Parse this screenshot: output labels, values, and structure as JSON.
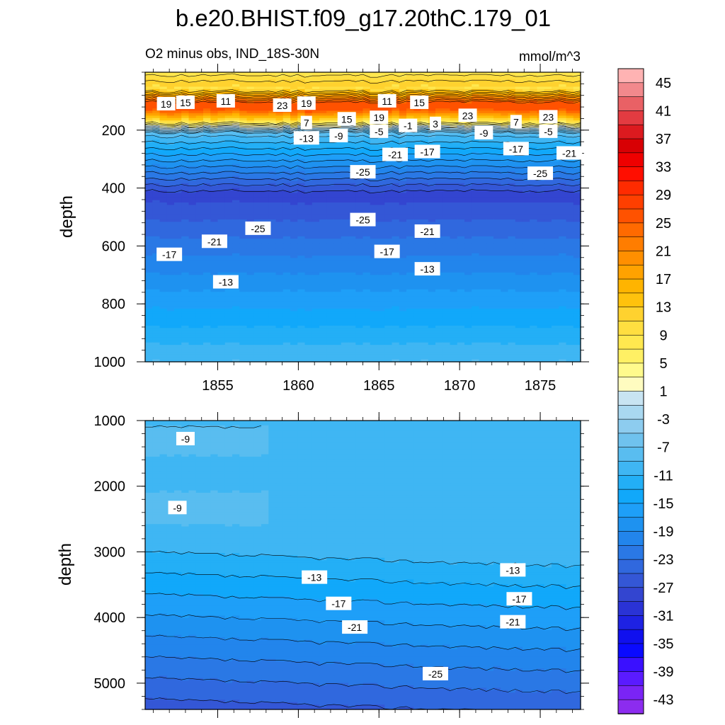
{
  "chart_data": {
    "type": "contour",
    "title": "b.e20.BHIST.f09_g17.20thC.179_01",
    "subtitle_left": "O2 minus obs, IND_18S-30N",
    "units": "mmol/m^3",
    "xlabel": "",
    "ylabel": "depth",
    "x_range": [
      1850.5,
      1877.5
    ],
    "x_ticks": [
      1855,
      1860,
      1865,
      1870,
      1875
    ],
    "x_tick_labels": [
      "1855",
      "1860",
      "1865",
      "1870",
      "1875"
    ],
    "panels": [
      {
        "name": "upper",
        "ylim": [
          0,
          1000
        ],
        "y_ticks": [
          200,
          400,
          600,
          800,
          1000
        ],
        "y_tick_labels": [
          "200",
          "400",
          "600",
          "800",
          "1000"
        ],
        "contour_labels": [
          {
            "text": "19",
            "x": 1851.8,
            "y": 110
          },
          {
            "text": "15",
            "x": 1853.0,
            "y": 105
          },
          {
            "text": "11",
            "x": 1855.5,
            "y": 100
          },
          {
            "text": "23",
            "x": 1859.0,
            "y": 115
          },
          {
            "text": "19",
            "x": 1860.5,
            "y": 108
          },
          {
            "text": "11",
            "x": 1865.5,
            "y": 100
          },
          {
            "text": "15",
            "x": 1867.5,
            "y": 105
          },
          {
            "text": "23",
            "x": 1870.5,
            "y": 150
          },
          {
            "text": "23",
            "x": 1875.5,
            "y": 155
          },
          {
            "text": "7",
            "x": 1860.5,
            "y": 175
          },
          {
            "text": "15",
            "x": 1863.0,
            "y": 162
          },
          {
            "text": "19",
            "x": 1865.0,
            "y": 157
          },
          {
            "text": "-1",
            "x": 1866.8,
            "y": 185
          },
          {
            "text": "3",
            "x": 1868.5,
            "y": 178
          },
          {
            "text": "7",
            "x": 1873.5,
            "y": 172
          },
          {
            "text": "-13",
            "x": 1860.5,
            "y": 228
          },
          {
            "text": "-9",
            "x": 1862.5,
            "y": 220
          },
          {
            "text": "-5",
            "x": 1865.0,
            "y": 205
          },
          {
            "text": "-9",
            "x": 1871.5,
            "y": 210
          },
          {
            "text": "-5",
            "x": 1875.5,
            "y": 205
          },
          {
            "text": "-21",
            "x": 1866.0,
            "y": 285
          },
          {
            "text": "-17",
            "x": 1868.0,
            "y": 275
          },
          {
            "text": "-17",
            "x": 1873.5,
            "y": 265
          },
          {
            "text": "-21",
            "x": 1876.8,
            "y": 280
          },
          {
            "text": "-25",
            "x": 1864.0,
            "y": 345
          },
          {
            "text": "-25",
            "x": 1875.0,
            "y": 350
          },
          {
            "text": "-25",
            "x": 1864.0,
            "y": 510
          },
          {
            "text": "-25",
            "x": 1857.5,
            "y": 540
          },
          {
            "text": "-21",
            "x": 1868.0,
            "y": 550
          },
          {
            "text": "-21",
            "x": 1854.8,
            "y": 585
          },
          {
            "text": "-17",
            "x": 1865.5,
            "y": 620
          },
          {
            "text": "-17",
            "x": 1852.0,
            "y": 630
          },
          {
            "text": "-13",
            "x": 1868.0,
            "y": 680
          },
          {
            "text": "-13",
            "x": 1855.5,
            "y": 725
          }
        ]
      },
      {
        "name": "lower",
        "ylim": [
          1000,
          5400
        ],
        "y_ticks": [
          1000,
          2000,
          3000,
          4000,
          5000
        ],
        "y_tick_labels": [
          "1000",
          "2000",
          "3000",
          "4000",
          "5000"
        ],
        "contour_labels": [
          {
            "text": "-9",
            "x": 1853.0,
            "y": 1280
          },
          {
            "text": "-9",
            "x": 1852.5,
            "y": 2330
          },
          {
            "text": "-13",
            "x": 1861.0,
            "y": 3390
          },
          {
            "text": "-13",
            "x": 1873.3,
            "y": 3280
          },
          {
            "text": "-17",
            "x": 1862.5,
            "y": 3790
          },
          {
            "text": "-17",
            "x": 1873.7,
            "y": 3720
          },
          {
            "text": "-21",
            "x": 1863.5,
            "y": 4150
          },
          {
            "text": "-21",
            "x": 1873.3,
            "y": 4070
          },
          {
            "text": "-25",
            "x": 1868.5,
            "y": 4860
          }
        ]
      }
    ],
    "colorbar": {
      "levels": [
        47,
        45,
        43,
        41,
        39,
        37,
        35,
        33,
        31,
        29,
        27,
        25,
        23,
        21,
        19,
        17,
        15,
        13,
        11,
        9,
        7,
        5,
        3,
        1,
        -1,
        -3,
        -5,
        -7,
        -9,
        -11,
        -13,
        -15,
        -17,
        -19,
        -21,
        -23,
        -25,
        -27,
        -29,
        -31,
        -33,
        -35,
        -37,
        -39,
        -41,
        -43,
        -45
      ],
      "labels": [
        "45",
        "41",
        "37",
        "33",
        "29",
        "25",
        "21",
        "17",
        "13",
        "9",
        "5",
        "1",
        "-3",
        "-7",
        "-11",
        "-15",
        "-19",
        "-23",
        "-27",
        "-31",
        "-35",
        "-39",
        "-43"
      ],
      "colors": [
        "#FFB3B3",
        "#F2898C",
        "#E96165",
        "#E33B41",
        "#DC1A1F",
        "#D80004",
        "#EF0000",
        "#FF0E00",
        "#FF2B00",
        "#FF3F00",
        "#FF5200",
        "#FF6A00",
        "#FF7D00",
        "#FF8F00",
        "#FFA200",
        "#FFB400",
        "#FFC20D",
        "#FFD22F",
        "#FFDE40",
        "#FFE84F",
        "#FFF064",
        "#FFFA8C",
        "#FFFCC0",
        "#C8E4F2",
        "#A9D8F0",
        "#8DCCEF",
        "#6FC2EE",
        "#59BDF0",
        "#3FB6F3",
        "#23AFF6",
        "#11A8FA",
        "#1E9FF8",
        "#1E92F0",
        "#2285EC",
        "#2A78E5",
        "#3068DE",
        "#3457D6",
        "#3345D0",
        "#2A33D6",
        "#1E22E3",
        "#1010EE",
        "#0A0AFF",
        "#3A10FF",
        "#5A1BFF",
        "#7A24F5",
        "#8C2CEF"
      ]
    }
  }
}
